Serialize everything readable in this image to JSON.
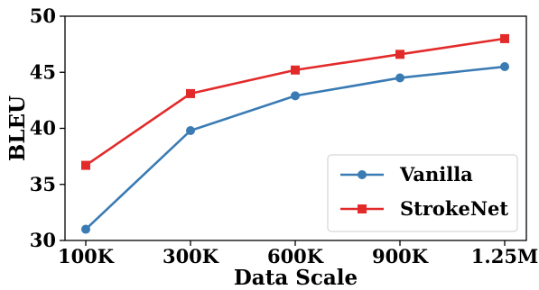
{
  "chart_data": {
    "type": "line",
    "xlabel": "Data Scale",
    "ylabel": "BLEU",
    "categories": [
      "100K",
      "300K",
      "600K",
      "900K",
      "1.25M"
    ],
    "ylim": [
      30,
      50
    ],
    "yticks": [
      30,
      35,
      40,
      45,
      50
    ],
    "grid": false,
    "legend_position": "bottom-right",
    "series": [
      {
        "name": "Vanilla",
        "values": [
          31.0,
          39.8,
          42.9,
          44.5,
          45.5
        ],
        "color": "#3a7bb4",
        "marker": "circle"
      },
      {
        "name": "StrokeNet",
        "values": [
          36.7,
          43.1,
          45.2,
          46.6,
          48.0
        ],
        "color": "#e32a2a",
        "marker": "square"
      }
    ]
  }
}
